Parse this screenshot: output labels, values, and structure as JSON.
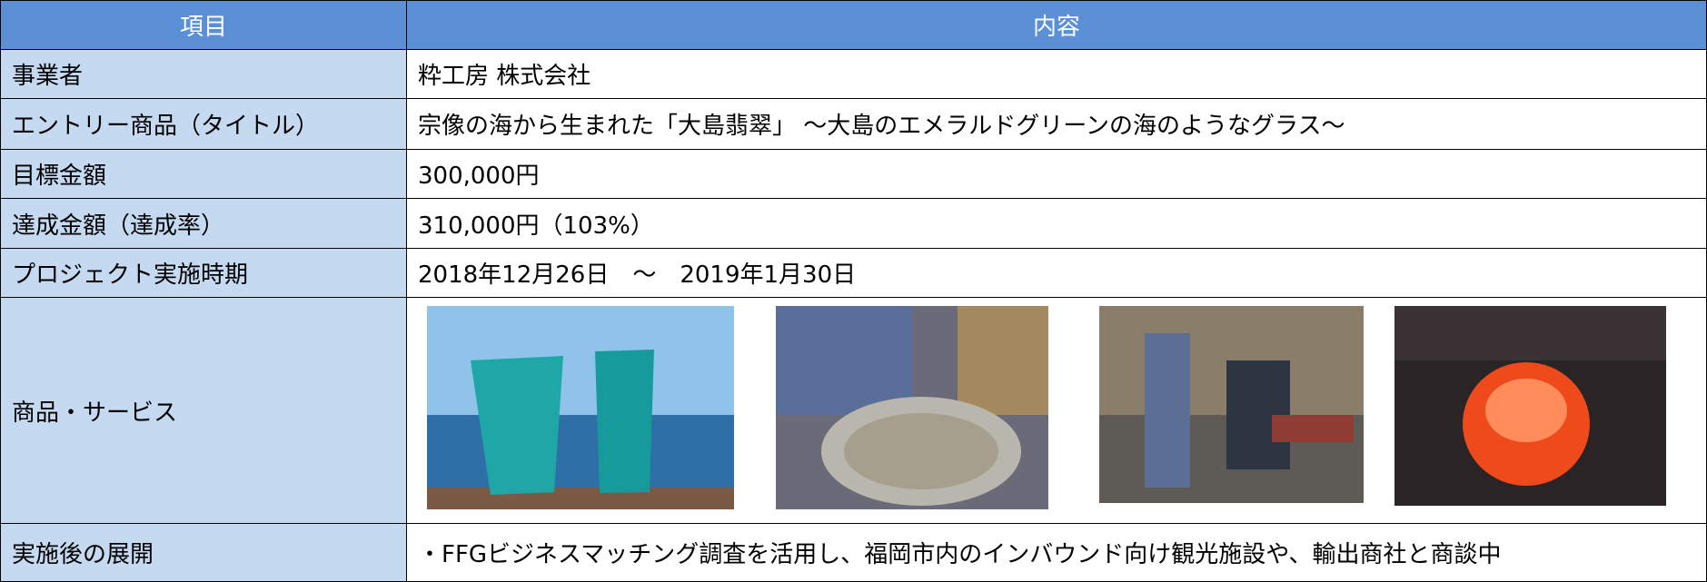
{
  "header": {
    "columns": [
      "項目",
      "内容"
    ]
  },
  "rows": [
    {
      "item": "事業者",
      "content": "粋工房 株式会社"
    },
    {
      "item": "エントリー商品（タイトル）",
      "content": "宗像の海から生まれた「大島翡翠」 ～大島のエメラルドグリーンの海のようなグラス～"
    },
    {
      "item": "目標金額",
      "content": "300,000円"
    },
    {
      "item": "達成金額（達成率）",
      "content": "310,000円（103%）"
    },
    {
      "item": "プロジェクト実施時期",
      "content": "2018年12月26日　～　2019年1月30日"
    },
    {
      "item": "商品・サービス"
    },
    {
      "item": "実施後の展開",
      "content": "・FFGビジネスマッチング調査を活用し、福岡市内のインバウンド向け観光施設や、輸出商社と商談中"
    }
  ]
}
